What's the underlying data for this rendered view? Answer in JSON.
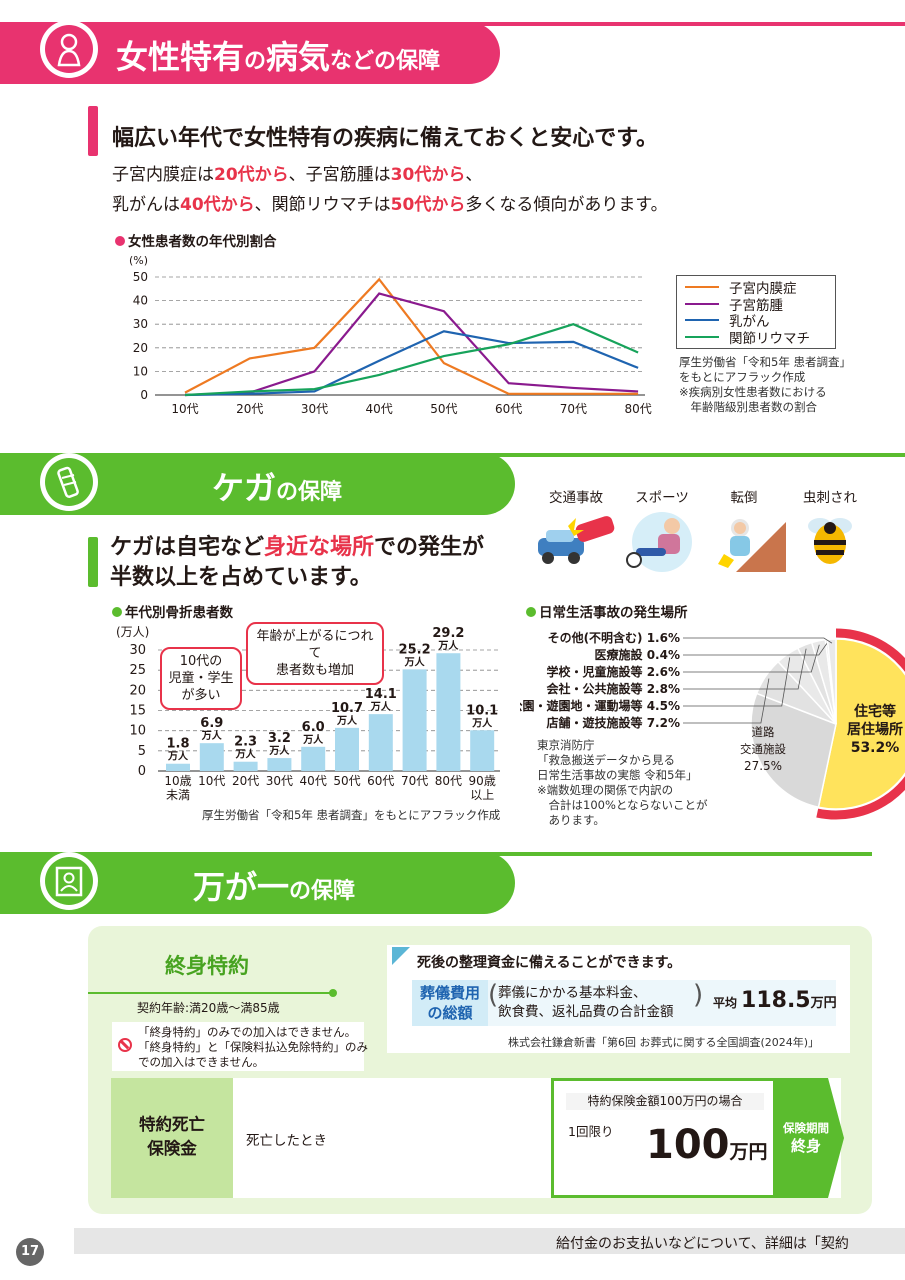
{
  "section1": {
    "title_big1": "女性特有",
    "title_small1": "の",
    "title_big2": "病気",
    "title_small2": "などの保障",
    "lead": "幅広い年代で女性特有の疾病に備えておくと安心です。",
    "para_line1": [
      {
        "t": "子宮内膜症は",
        "hl": false
      },
      {
        "t": "20代から",
        "hl": true
      },
      {
        "t": "、子宮筋腫は",
        "hl": false
      },
      {
        "t": "30代から",
        "hl": true
      },
      {
        "t": "、",
        "hl": false
      }
    ],
    "para_line2": [
      {
        "t": "乳がんは",
        "hl": false
      },
      {
        "t": "40代から",
        "hl": true
      },
      {
        "t": "、関節リウマチは",
        "hl": false
      },
      {
        "t": "50代から",
        "hl": true
      },
      {
        "t": "多くなる傾向があります。",
        "hl": false
      }
    ],
    "chart_title": "女性患者数の年代別割合",
    "source_lines": [
      "厚生労働省「令和5年 患者調査」",
      "をもとにアフラック作成",
      "※疾病別女性患者数における",
      "　年齢階級別患者数の割合"
    ]
  },
  "section2": {
    "title_big": "ケガ",
    "title_small": "の保障",
    "lead_line1_a": "ケガは自宅など",
    "lead_line1_hl": "身近な場所",
    "lead_line1_b": "での発生が",
    "lead_line2": "半数以上を占めています。",
    "icons": [
      "交通事故",
      "スポーツ",
      "転倒",
      "虫刺され"
    ],
    "bar_chart_title": "年代別骨折患者数",
    "callout_teens": [
      "10代の",
      "児童・学生",
      "が多い"
    ],
    "callout_age": [
      "年齢が上がるにつれて",
      "患者数も増加"
    ],
    "bar_source": "厚生労働省「令和5年 患者調査」をもとにアフラック作成",
    "pie_chart_title": "日常生活事故の発生場所",
    "pie_source_lines": [
      "東京消防庁",
      "「救急搬送データから見る",
      "日常生活事故の実態 令和5年」",
      "※端数処理の関係で内訳の",
      "　合計は100%とならないことが",
      "　あります。"
    ]
  },
  "section3": {
    "title_big1": "万が一",
    "title_small": "の保障",
    "rider_name": "終身特約",
    "age_range": "契約年齢:満20歳〜満85歳",
    "notice_lines": [
      "「終身特約」のみでの加入はできません。",
      "「終身特約」と「保険料払込免除特約」のみ",
      "での加入はできません。"
    ],
    "card_title": "死後の整理資金に備えることができます。",
    "funeral_label_1": "葬儀費用",
    "funeral_label_2": "の総額",
    "funeral_detail_1": "葬儀にかかる基本料金、",
    "funeral_detail_2": "飲食費、返礼品費の合計金額",
    "funeral_avg_label": "平均",
    "funeral_avg_value": "118.5",
    "funeral_avg_unit": "万円",
    "card_source": "株式会社鎌倉新書「第6回 お葬式に関する全国調査(2024年)」",
    "benefit_name_1": "特約死亡",
    "benefit_name_2": "保険金",
    "benefit_condition": "死亡したとき",
    "benefit_case": "特約保険金額100万円の場合",
    "benefit_times": "1回限り",
    "benefit_amount": "100",
    "benefit_unit": "万円",
    "period_label": "保険期間",
    "period_value": "終身"
  },
  "footer": {
    "page_number": "17",
    "text": "給付金のお支払いなどについて、詳細は「契約"
  },
  "colors": {
    "pink": "#e8336f",
    "pink_light": "#f7b9cd",
    "green": "#5bbc2e",
    "green_light": "#c5e59f",
    "red": "#e8334a",
    "orange": "#ee7a22",
    "purple": "#8a1a8e",
    "blue": "#1f64b0",
    "teal": "#17a35b",
    "bar_blue": "#a9d9ee",
    "yellow": "#ffe35c",
    "gray": "#d9d9d9"
  },
  "chart_data": [
    {
      "type": "line",
      "title": "女性患者数の年代別割合",
      "ylabel": "(%)",
      "ylim": [
        0,
        50
      ],
      "yticks": [
        0,
        10,
        20,
        30,
        40,
        50
      ],
      "categories": [
        "10代",
        "20代",
        "30代",
        "40代",
        "50代",
        "60代",
        "70代",
        "80代"
      ],
      "series": [
        {
          "name": "子宮内膜症",
          "color": "#ee7a22",
          "values": [
            1,
            15.5,
            20,
            49,
            13.5,
            0.5,
            0.5,
            0.5
          ]
        },
        {
          "name": "子宮筋腫",
          "color": "#8a1a8e",
          "values": [
            0,
            1,
            10,
            43,
            35.5,
            5,
            3,
            1.5
          ]
        },
        {
          "name": "乳がん",
          "color": "#1f64b0",
          "values": [
            0,
            0.5,
            1.5,
            14.5,
            27,
            22,
            22.5,
            11.5
          ]
        },
        {
          "name": "関節リウマチ",
          "color": "#17a35b",
          "values": [
            0,
            1.5,
            2.5,
            8.5,
            16.5,
            21.5,
            30,
            18
          ]
        }
      ]
    },
    {
      "type": "bar",
      "title": "年代別骨折患者数",
      "ylabel": "(万人)",
      "ylim": [
        0,
        30
      ],
      "yticks": [
        0,
        5,
        10,
        15,
        20,
        25,
        30
      ],
      "categories": [
        "10歳未満",
        "10代",
        "20代",
        "30代",
        "40代",
        "50代",
        "60代",
        "70代",
        "80代",
        "90歳以上"
      ],
      "values": [
        1.8,
        6.9,
        2.3,
        3.2,
        6.0,
        10.7,
        14.1,
        25.2,
        29.2,
        10.1
      ],
      "value_labels": [
        "1.8",
        "6.9",
        "2.3",
        "3.2",
        "6.0",
        "10.7",
        "14.1",
        "25.2",
        "29.2",
        "10.1"
      ],
      "unit_label": "万人"
    },
    {
      "type": "pie",
      "title": "日常生活事故の発生場所",
      "slices": [
        {
          "label": "住宅等居住場所",
          "value": 53.2,
          "display": "53.2%"
        },
        {
          "label": "道路交通施設",
          "value": 27.5,
          "display": "27.5%"
        },
        {
          "label": "店舗・遊技施設等",
          "value": 7.2,
          "display": "7.2%"
        },
        {
          "label": "公園・遊園地・運動場等",
          "value": 4.5,
          "display": "4.5%"
        },
        {
          "label": "会社・公共施設等",
          "value": 2.8,
          "display": "2.8%"
        },
        {
          "label": "学校・児童施設等",
          "value": 2.6,
          "display": "2.6%"
        },
        {
          "label": "医療施設",
          "value": 0.4,
          "display": "0.4%"
        },
        {
          "label": "その他(不明含む)",
          "value": 1.6,
          "display": "1.6%"
        }
      ]
    }
  ]
}
